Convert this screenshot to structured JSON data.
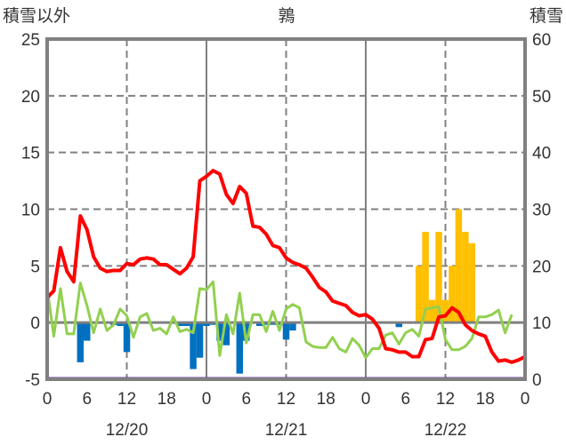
{
  "chart_data": {
    "type": "bar+line",
    "title": "鶉",
    "ylabel_left": "積雪以外",
    "ylabel_right": "積雪",
    "ylim_left": [
      -5,
      25
    ],
    "yticks_left": [
      -5,
      0,
      5,
      10,
      15,
      20,
      25
    ],
    "ylim_right": [
      0,
      60
    ],
    "yticks_right": [
      0,
      10,
      20,
      30,
      40,
      50,
      60
    ],
    "xlim_hours": [
      0,
      72
    ],
    "xtick_labels": [
      "0",
      "6",
      "12",
      "18",
      "0",
      "6",
      "12",
      "18",
      "0",
      "6",
      "12",
      "18",
      "0"
    ],
    "date_labels": [
      "12/20",
      "12/21",
      "12/22"
    ],
    "grid": true,
    "colors": {
      "red": "#ff0000",
      "green": "#92d050",
      "blue": "#0070c0",
      "yellow": "#ffc000",
      "purple": "#7030a0",
      "axis": "#808080"
    },
    "series": [
      {
        "name": "red-line",
        "axis": "left",
        "type": "line",
        "values": [
          2.2,
          2.8,
          6.6,
          4.5,
          3.6,
          9.4,
          8.2,
          5.8,
          4.8,
          4.5,
          4.6,
          4.6,
          5.2,
          5.1,
          5.6,
          5.7,
          5.6,
          5.1,
          5.1,
          4.7,
          4.3,
          4.8,
          5.8,
          12.5,
          12.9,
          13.4,
          13.1,
          11.3,
          10.5,
          12.0,
          11.4,
          8.5,
          8.4,
          7.8,
          6.8,
          6.6,
          5.7,
          5.3,
          5.1,
          4.8,
          4.0,
          3.1,
          2.7,
          1.9,
          1.7,
          1.5,
          0.9,
          0.6,
          0.7,
          0.3,
          -0.5,
          -2.3,
          -2.4,
          -2.6,
          -2.6,
          -3.0,
          -3.0,
          -1.5,
          -1.4,
          0.5,
          0.6,
          1.3,
          0.9,
          -0.2,
          -0.7,
          -1.0,
          -1.2,
          -2.6,
          -3.4,
          -3.3,
          -3.5,
          -3.3,
          -3.0
        ]
      },
      {
        "name": "green-line",
        "axis": "left",
        "type": "line",
        "values": [
          3.0,
          -1.2,
          3.0,
          -1.0,
          -1.0,
          3.5,
          1.5,
          -0.9,
          1.2,
          -0.7,
          -0.2,
          1.2,
          0.6,
          -1.3,
          0.5,
          0.8,
          -0.7,
          -0.5,
          -1.0,
          0.5,
          -0.8,
          -0.6,
          -0.9,
          3.0,
          2.9,
          3.6,
          -2.9,
          0.7,
          -1.0,
          2.6,
          -1.8,
          0.7,
          0.7,
          -0.8,
          1.0,
          -0.7,
          1.2,
          1.6,
          1.3,
          -1.7,
          -2.1,
          -2.2,
          -2.2,
          -1.3,
          -2.3,
          -2.6,
          -1.4,
          -2.0,
          -3.1,
          -2.3,
          -2.3,
          -1.1,
          -0.9,
          -1.9,
          -0.9,
          -0.6,
          -1.2,
          1.2,
          1.3,
          1.4,
          -1.5,
          -2.4,
          -2.4,
          -2.1,
          -1.4,
          0.5,
          0.5,
          0.7,
          1.1,
          -0.9,
          0.7
        ]
      },
      {
        "name": "blue-bars",
        "axis": "left",
        "type": "bar",
        "hours": [
          5,
          6,
          10,
          11,
          12,
          20,
          21,
          22,
          23,
          24,
          25,
          26,
          27,
          29,
          30,
          32,
          33,
          34,
          35,
          36,
          37,
          53
        ],
        "values": [
          -3.5,
          -1.6,
          -0.2,
          -0.3,
          -2.6,
          -0.3,
          -0.3,
          -4.1,
          -3.1,
          -0.3,
          -0.2,
          -1.6,
          -2.0,
          -4.5,
          -1.6,
          -0.3,
          -0.2,
          -0.2,
          -0.2,
          -1.5,
          -0.7,
          -0.4
        ]
      },
      {
        "name": "yellow-bars",
        "axis": "right",
        "type": "bar",
        "base": 10,
        "hours": [
          56,
          57,
          58,
          59,
          60,
          61,
          62,
          63,
          64
        ],
        "values": [
          20,
          26,
          14,
          26,
          14,
          20,
          30,
          26,
          24
        ]
      }
    ]
  }
}
